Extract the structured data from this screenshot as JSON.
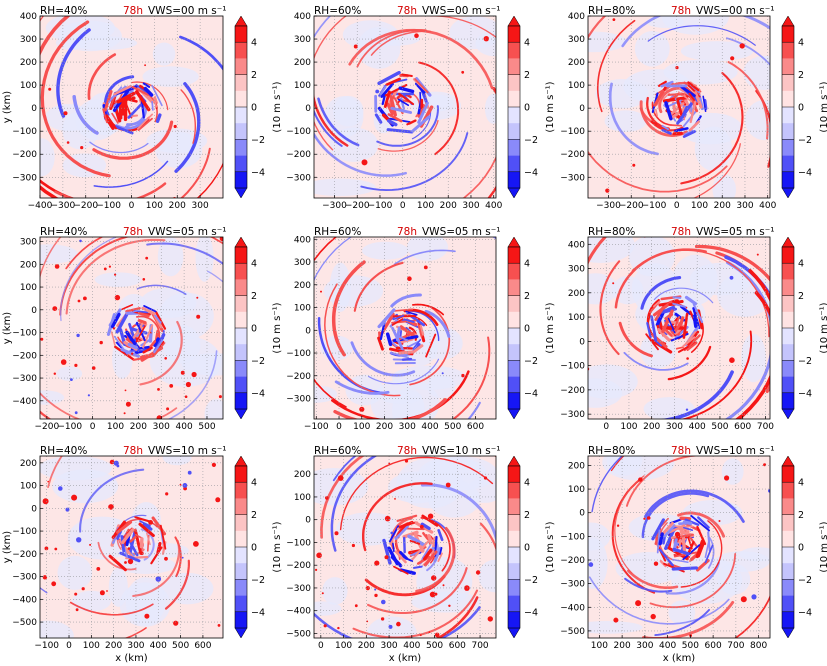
{
  "figure": {
    "time_label": "78h",
    "time_color": "#d40000",
    "colorbar_label": "(10 m s⁻¹)",
    "colorbar_ticks": [
      "4",
      "2",
      "0",
      "−2",
      "−4"
    ],
    "colorbar_levels": [
      5,
      4,
      3,
      2,
      1,
      0,
      -1,
      -2,
      -3,
      -4,
      -5
    ],
    "colorbar_colors": [
      "#f51616",
      "#f75050",
      "#fa8a8a",
      "#fcc4c4",
      "#ffe3e3",
      "#e3e3ff",
      "#c4c4fc",
      "#8a8afa",
      "#5050f7",
      "#1616f5"
    ],
    "background_positive": "#fde6e6",
    "background_negative": "#e6e8fd",
    "xlabel": "x (km)",
    "ylabel": "y (km)"
  },
  "chart_data": [
    {
      "type": "heatmap",
      "rh": "RH=40%",
      "vws": "VWS=00 m s⁻¹",
      "xlim": [
        -400,
        400
      ],
      "ylim": [
        -390,
        400
      ],
      "xticks": [
        -400,
        -300,
        -200,
        -100,
        0,
        100,
        200,
        300
      ],
      "yticks": [
        400,
        300,
        200,
        100,
        0,
        -100,
        -200,
        -300
      ],
      "center": [
        0,
        0
      ],
      "core": "moderate",
      "spiral": "strong",
      "scattered": "few"
    },
    {
      "type": "heatmap",
      "rh": "RH=60%",
      "vws": "VWS=00 m s⁻¹",
      "xlim": [
        -390,
        410
      ],
      "ylim": [
        -390,
        400
      ],
      "xticks": [
        -300,
        -200,
        -100,
        0,
        100,
        200,
        300,
        400
      ],
      "yticks": [
        400,
        300,
        200,
        100,
        0,
        -100,
        -200,
        -300
      ],
      "center": [
        0,
        20
      ],
      "core": "moderate",
      "spiral": "moderate",
      "scattered": "few"
    },
    {
      "type": "heatmap",
      "rh": "RH=80%",
      "vws": "VWS=00 m s⁻¹",
      "xlim": [
        -390,
        410
      ],
      "ylim": [
        -390,
        400
      ],
      "xticks": [
        -300,
        -200,
        -100,
        0,
        100,
        200,
        300,
        400
      ],
      "yticks": [
        400,
        300,
        200,
        100,
        0,
        -100,
        -200,
        -300
      ],
      "center": [
        0,
        0
      ],
      "core": "strong",
      "spiral": "moderate",
      "scattered": "few"
    },
    {
      "type": "heatmap",
      "rh": "RH=40%",
      "vws": "VWS=05 m s⁻¹",
      "xlim": [
        -230,
        570
      ],
      "ylim": [
        -480,
        320
      ],
      "xticks": [
        -200,
        -100,
        0,
        100,
        200,
        300,
        400,
        500
      ],
      "yticks": [
        300,
        200,
        100,
        0,
        -100,
        -200,
        -300,
        -400
      ],
      "center": [
        200,
        -100
      ],
      "core": "strong",
      "spiral": "weak",
      "scattered": "many"
    },
    {
      "type": "heatmap",
      "rh": "RH=60%",
      "vws": "VWS=05 m s⁻¹",
      "xlim": [
        -110,
        690
      ],
      "ylim": [
        -390,
        410
      ],
      "xticks": [
        -100,
        0,
        100,
        200,
        300,
        400,
        500,
        600
      ],
      "yticks": [
        400,
        300,
        200,
        100,
        0,
        -100,
        -200,
        -300
      ],
      "center": [
        290,
        -20
      ],
      "core": "moderate",
      "spiral": "strong",
      "scattered": "few"
    },
    {
      "type": "heatmap",
      "rh": "RH=80%",
      "vws": "VWS=05 m s⁻¹",
      "xlim": [
        -80,
        720
      ],
      "ylim": [
        -320,
        430
      ],
      "xticks": [
        0,
        100,
        200,
        300,
        400,
        500,
        600,
        700
      ],
      "yticks": [
        400,
        300,
        200,
        100,
        0,
        -100,
        -200,
        -300
      ],
      "center": [
        300,
        70
      ],
      "core": "strong",
      "spiral": "strong",
      "scattered": "few"
    },
    {
      "type": "heatmap",
      "rh": "RH=40%",
      "vws": "VWS=10 m s⁻¹",
      "xlim": [
        -130,
        690
      ],
      "ylim": [
        -570,
        230
      ],
      "xticks": [
        -100,
        0,
        100,
        200,
        300,
        400,
        500,
        600
      ],
      "yticks": [
        200,
        100,
        0,
        -100,
        -200,
        -300,
        -400,
        -500
      ],
      "center": [
        300,
        -150
      ],
      "core": "weak",
      "spiral": "weak",
      "scattered": "many"
    },
    {
      "type": "heatmap",
      "rh": "RH=60%",
      "vws": "VWS=10 m s⁻¹",
      "xlim": [
        -30,
        770
      ],
      "ylim": [
        -520,
        280
      ],
      "xticks": [
        0,
        100,
        200,
        300,
        400,
        500,
        600,
        700
      ],
      "yticks": [
        200,
        100,
        0,
        -100,
        -200,
        -300,
        -400,
        -500
      ],
      "center": [
        410,
        -110
      ],
      "core": "moderate",
      "spiral": "moderate",
      "scattered": "many"
    },
    {
      "type": "heatmap",
      "rh": "RH=80%",
      "vws": "VWS=10 m s⁻¹",
      "xlim": [
        50,
        850
      ],
      "ylim": [
        -530,
        240
      ],
      "xticks": [
        100,
        200,
        300,
        400,
        500,
        600,
        700,
        800
      ],
      "yticks": [
        200,
        100,
        0,
        -100,
        -200,
        -300,
        -400,
        -500
      ],
      "center": [
        470,
        -130
      ],
      "core": "strong",
      "spiral": "moderate",
      "scattered": "some"
    }
  ]
}
